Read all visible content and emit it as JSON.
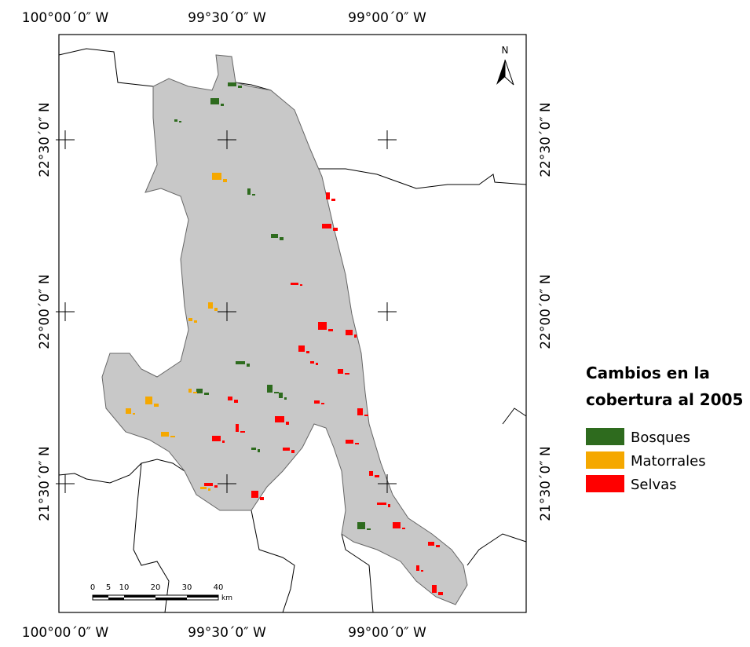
{
  "map": {
    "top_labels": [
      "100°00´0″ W",
      "99°30´0″ W",
      "99°00´0″ W"
    ],
    "bottom_labels": [
      "100°00´0″ W",
      "99°30´0″ W",
      "99°00´0″ W"
    ],
    "left_labels": [
      "22°30´0″ N",
      "22°00´0″ N",
      "21°30´0″ N"
    ],
    "right_labels": [
      "22°30´0″ N",
      "22°00´0″ N",
      "21°30´0″ N"
    ],
    "north": "N",
    "scale_bar": {
      "ticks": [
        0,
        5,
        10,
        20,
        30,
        40
      ],
      "unit": "km"
    },
    "legend": {
      "title": [
        "Cambios en la",
        "cobertura al 2005"
      ],
      "items": [
        {
          "label": "Bosques",
          "color": "#2e6b1e"
        },
        {
          "label": "Matorrales",
          "color": "#f5a800"
        },
        {
          "label": "Selvas",
          "color": "#ff0000"
        }
      ]
    }
  }
}
